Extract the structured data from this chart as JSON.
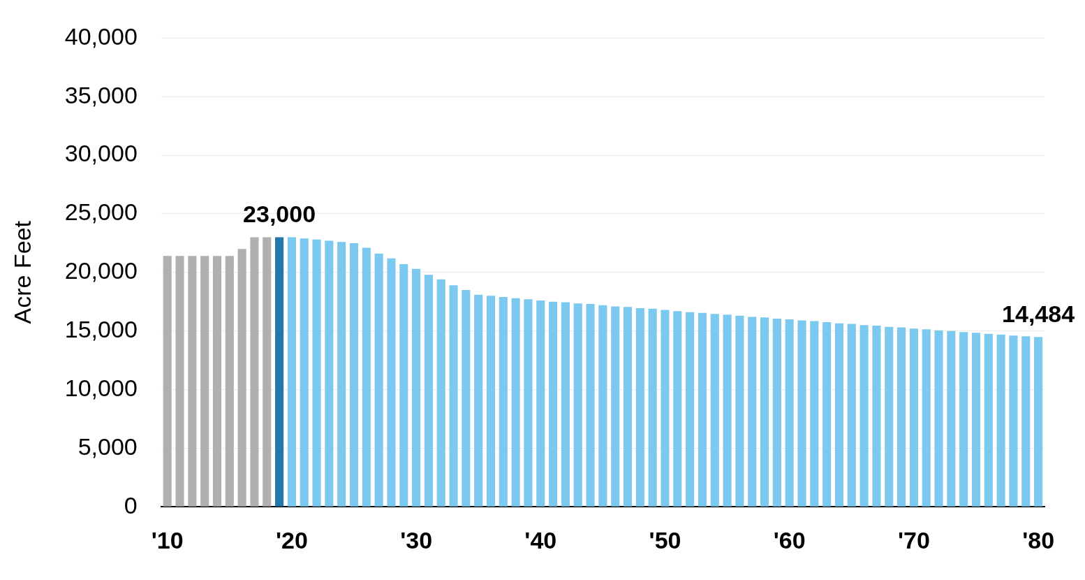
{
  "chart_data": {
    "type": "bar",
    "ylabel": "Acre Feet",
    "categories": [
      "'10",
      null,
      null,
      null,
      null,
      null,
      null,
      null,
      null,
      null,
      "'20",
      null,
      null,
      null,
      null,
      null,
      null,
      null,
      null,
      null,
      "'30",
      null,
      null,
      null,
      null,
      null,
      null,
      null,
      null,
      null,
      "'40",
      null,
      null,
      null,
      null,
      null,
      null,
      null,
      null,
      null,
      "'50",
      null,
      null,
      null,
      null,
      null,
      null,
      null,
      null,
      null,
      "'60",
      null,
      null,
      null,
      null,
      null,
      null,
      null,
      null,
      null,
      "'70",
      null,
      null,
      null,
      null,
      null,
      null,
      null,
      null,
      null,
      "'80"
    ],
    "values": [
      21400,
      21400,
      21400,
      21400,
      21400,
      21400,
      22000,
      23000,
      23000,
      23000,
      23000,
      22900,
      22800,
      22700,
      22600,
      22500,
      22100,
      21600,
      21200,
      20700,
      20300,
      19800,
      19400,
      18900,
      18500,
      18100,
      18000,
      17900,
      17800,
      17700,
      17600,
      17500,
      17450,
      17350,
      17300,
      17200,
      17100,
      17050,
      16950,
      16900,
      16800,
      16700,
      16600,
      16550,
      16450,
      16400,
      16300,
      16200,
      16150,
      16050,
      16000,
      15900,
      15850,
      15750,
      15650,
      15600,
      15500,
      15450,
      15350,
      15300,
      15200,
      15150,
      15050,
      15000,
      14900,
      14850,
      14750,
      14700,
      14600,
      14550,
      14484
    ],
    "colors": [
      "#b0b0b0",
      "#b0b0b0",
      "#b0b0b0",
      "#b0b0b0",
      "#b0b0b0",
      "#b0b0b0",
      "#b0b0b0",
      "#b0b0b0",
      "#b0b0b0",
      "#2278a8",
      "#7bc9ef",
      "#7bc9ef",
      "#7bc9ef",
      "#7bc9ef",
      "#7bc9ef",
      "#7bc9ef",
      "#7bc9ef",
      "#7bc9ef",
      "#7bc9ef",
      "#7bc9ef",
      "#7bc9ef",
      "#7bc9ef",
      "#7bc9ef",
      "#7bc9ef",
      "#7bc9ef",
      "#7bc9ef",
      "#7bc9ef",
      "#7bc9ef",
      "#7bc9ef",
      "#7bc9ef",
      "#7bc9ef",
      "#7bc9ef",
      "#7bc9ef",
      "#7bc9ef",
      "#7bc9ef",
      "#7bc9ef",
      "#7bc9ef",
      "#7bc9ef",
      "#7bc9ef",
      "#7bc9ef",
      "#7bc9ef",
      "#7bc9ef",
      "#7bc9ef",
      "#7bc9ef",
      "#7bc9ef",
      "#7bc9ef",
      "#7bc9ef",
      "#7bc9ef",
      "#7bc9ef",
      "#7bc9ef",
      "#7bc9ef",
      "#7bc9ef",
      "#7bc9ef",
      "#7bc9ef",
      "#7bc9ef",
      "#7bc9ef",
      "#7bc9ef",
      "#7bc9ef",
      "#7bc9ef",
      "#7bc9ef",
      "#7bc9ef",
      "#7bc9ef",
      "#7bc9ef",
      "#7bc9ef",
      "#7bc9ef",
      "#7bc9ef",
      "#7bc9ef",
      "#7bc9ef",
      "#7bc9ef",
      "#7bc9ef",
      "#7bc9ef"
    ],
    "value_labels": [
      null,
      null,
      null,
      null,
      null,
      null,
      null,
      null,
      null,
      "23,000",
      null,
      null,
      null,
      null,
      null,
      null,
      null,
      null,
      null,
      null,
      null,
      null,
      null,
      null,
      null,
      null,
      null,
      null,
      null,
      null,
      null,
      null,
      null,
      null,
      null,
      null,
      null,
      null,
      null,
      null,
      null,
      null,
      null,
      null,
      null,
      null,
      null,
      null,
      null,
      null,
      null,
      null,
      null,
      null,
      null,
      null,
      null,
      null,
      null,
      null,
      null,
      null,
      null,
      null,
      null,
      null,
      null,
      null,
      null,
      null,
      "14,484"
    ],
    "ylim": [
      0,
      40000
    ],
    "yticks": [
      {
        "value": 0,
        "label": "0"
      },
      {
        "value": 5000,
        "label": "5,000"
      },
      {
        "value": 10000,
        "label": "10,000"
      },
      {
        "value": 15000,
        "label": "15,000"
      },
      {
        "value": 20000,
        "label": "20,000"
      },
      {
        "value": 25000,
        "label": "25,000"
      },
      {
        "value": 30000,
        "label": "30,000"
      },
      {
        "value": 35000,
        "label": "35,000"
      },
      {
        "value": 40000,
        "label": "40,000"
      }
    ],
    "grid": "y"
  }
}
